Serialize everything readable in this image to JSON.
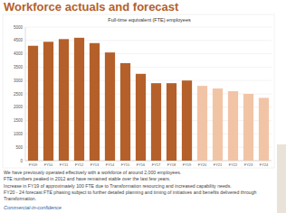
{
  "header": {
    "title": "Workforce actuals and forecast"
  },
  "chart_data": {
    "type": "bar",
    "title": "Full-time equivalent (FTE) employees",
    "categories": [
      "FY09",
      "FY10",
      "FY11",
      "FY12",
      "FY13",
      "FY14",
      "FY15",
      "FY16",
      "FY17",
      "FY18",
      "FY19",
      "FY20",
      "FY21",
      "FY22",
      "FY23",
      "FY24"
    ],
    "values": [
      4300,
      4450,
      4550,
      4600,
      4400,
      4050,
      3650,
      3250,
      2900,
      2900,
      3000,
      2800,
      2700,
      2600,
      2500,
      2350
    ],
    "colors": [
      "#b5602a",
      "#b5602a",
      "#b5602a",
      "#b5602a",
      "#b5602a",
      "#b5602a",
      "#b5602a",
      "#b5602a",
      "#b5602a",
      "#b5602a",
      "#b5602a",
      "#f2c4a6",
      "#f2c4a6",
      "#f2c4a6",
      "#f2c4a6",
      "#f2c4a6"
    ],
    "ylim": [
      0,
      5000
    ],
    "yticks": [
      0,
      500,
      1000,
      1500,
      2000,
      2500,
      3000,
      3500,
      4000,
      4500,
      5000
    ],
    "grid": true
  },
  "notes": [
    "We have previously operated effectively with a workforce of around 2,000 employees.",
    "FTE numbers peaked in 2012 and have remained stable over the last few years.",
    "Increase in FY19 of approximately 100 FTE due to Transformation resourcing and increased capability needs.",
    "FY20 - 24 forecast FTE phasing subject to further detailed planning and timing of initiatives and benefits delivered through Transformation."
  ],
  "footer": "Commercial-in-confidence"
}
